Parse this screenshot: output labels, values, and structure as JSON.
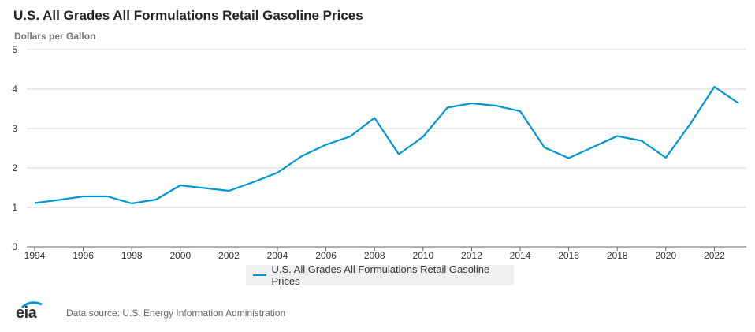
{
  "colors": {
    "line": "#0096d6",
    "grid": "#d6d6d6",
    "axis": "#666666"
  },
  "footer": {
    "logo_text": "eia",
    "source": "Data source: U.S. Energy Information Administration"
  },
  "chart_data": {
    "type": "line",
    "title": "U.S. All Grades All Formulations Retail Gasoline Prices",
    "ylabel": "Dollars per Gallon",
    "xlabel": "",
    "ylim": [
      0,
      5
    ],
    "xlim": [
      1994,
      2023
    ],
    "grid": true,
    "legend_position": "bottom-center",
    "y_ticks": [
      "0",
      "1",
      "2",
      "3",
      "4",
      "5"
    ],
    "x_ticks": [
      "1994",
      "1996",
      "1998",
      "2000",
      "2002",
      "2004",
      "2006",
      "2008",
      "2010",
      "2012",
      "2014",
      "2016",
      "2018",
      "2020",
      "2022"
    ],
    "series": [
      {
        "name": "U.S. All Grades All Formulations Retail Gasoline Prices",
        "x": [
          1994,
          1995,
          1996,
          1997,
          1998,
          1999,
          2000,
          2001,
          2002,
          2003,
          2004,
          2005,
          2006,
          2007,
          2008,
          2009,
          2010,
          2011,
          2012,
          2013,
          2014,
          2015,
          2016,
          2017,
          2018,
          2019,
          2020,
          2021,
          2022,
          2023
        ],
        "values": [
          1.11,
          1.19,
          1.28,
          1.28,
          1.1,
          1.2,
          1.56,
          1.49,
          1.42,
          1.64,
          1.88,
          2.3,
          2.59,
          2.8,
          3.27,
          2.35,
          2.79,
          3.53,
          3.64,
          3.58,
          3.44,
          2.52,
          2.25,
          2.53,
          2.81,
          2.69,
          2.26,
          3.11,
          4.06,
          3.64
        ]
      }
    ]
  }
}
